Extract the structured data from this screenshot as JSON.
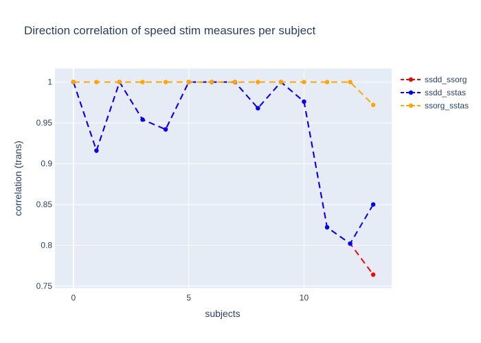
{
  "chart_data": {
    "type": "line",
    "title": "Direction correlation of speed stim measures per subject",
    "xlabel": "subjects",
    "ylabel": "correlation (trans)",
    "xlim": [
      -0.8,
      13.8
    ],
    "ylim": [
      0.7475,
      1.0165
    ],
    "xticks": [
      0,
      5,
      10
    ],
    "xtick_labels": [
      "0",
      "5",
      "10"
    ],
    "yticks": [
      0.75,
      0.8,
      0.85,
      0.9,
      0.95,
      1
    ],
    "ytick_labels": [
      "0.75",
      "0.8",
      "0.85",
      "0.9",
      "0.95",
      "1"
    ],
    "grid": true,
    "legend_position": "top-right",
    "x": [
      0,
      1,
      2,
      3,
      4,
      5,
      6,
      7,
      8,
      9,
      10,
      11,
      12,
      13
    ],
    "series": [
      {
        "name": "ssdd_ssorg",
        "color": "#ff0000",
        "values": [
          1,
          0.916,
          1,
          0.954,
          0.942,
          1,
          1,
          1,
          0.968,
          1,
          0.976,
          0.822,
          0.802,
          0.764
        ]
      },
      {
        "name": "ssdd_sstas",
        "color": "#0000ff",
        "values": [
          1,
          0.916,
          1,
          0.954,
          0.942,
          1,
          1,
          1,
          0.968,
          1,
          0.976,
          0.822,
          0.802,
          0.85
        ]
      },
      {
        "name": "ssorg_sstas",
        "color": "#ffa500",
        "values": [
          1,
          1,
          1,
          1,
          1,
          1,
          1,
          1,
          1,
          1,
          1,
          1,
          1,
          0.972
        ]
      }
    ]
  }
}
